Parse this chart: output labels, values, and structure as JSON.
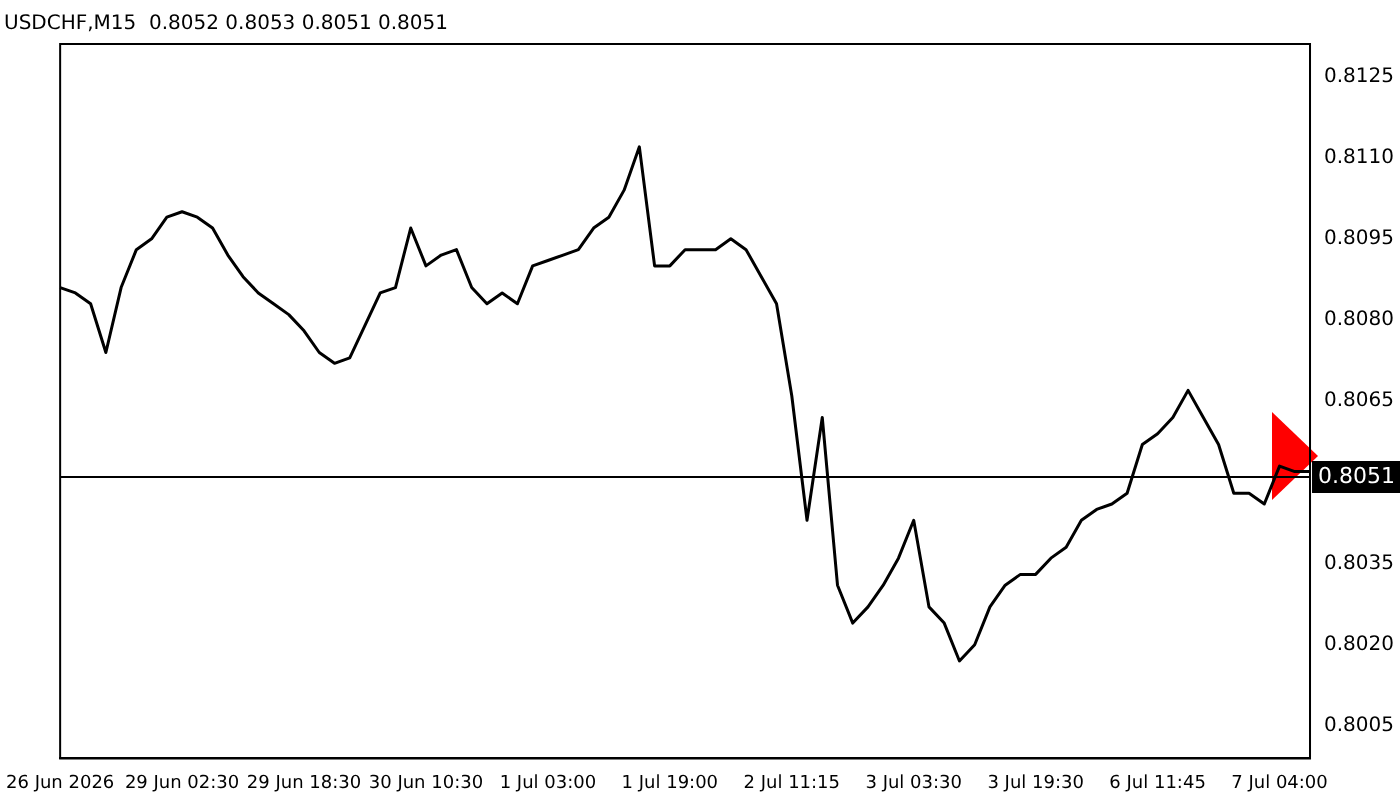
{
  "chart_data": {
    "type": "line",
    "title": "USDCHF,M15  0.8052 0.8053 0.8051 0.8051",
    "categories": [
      "26 Jun 2026",
      null,
      null,
      null,
      null,
      null,
      null,
      null,
      "29 Jun 02:30",
      null,
      null,
      null,
      null,
      null,
      null,
      null,
      "29 Jun 18:30",
      null,
      null,
      null,
      null,
      null,
      null,
      null,
      "30 Jun 10:30",
      null,
      null,
      null,
      null,
      null,
      null,
      null,
      "1 Jul 03:00",
      null,
      null,
      null,
      null,
      null,
      null,
      null,
      "1 Jul 19:00",
      null,
      null,
      null,
      null,
      null,
      null,
      null,
      "2 Jul 11:15",
      null,
      null,
      null,
      null,
      null,
      null,
      null,
      "3 Jul 03:30",
      null,
      null,
      null,
      null,
      null,
      null,
      null,
      "3 Jul 19:30",
      null,
      null,
      null,
      null,
      null,
      null,
      null,
      "6 Jul 11:45",
      null,
      null,
      null,
      null,
      null,
      null,
      null,
      "7 Jul 04:00",
      null,
      null
    ],
    "series": [
      {
        "color": "#000000",
        "values": [
          0.8086,
          0.8085,
          0.8083,
          0.8074,
          0.8086,
          0.8093,
          0.8095,
          0.8099,
          0.81,
          0.8099,
          0.8097,
          0.8092,
          0.8088,
          0.8085,
          0.8083,
          0.8081,
          0.8078,
          0.8074,
          0.8072,
          0.8073,
          0.8079,
          0.8085,
          0.8086,
          0.8097,
          0.809,
          0.8092,
          0.8093,
          0.8086,
          0.8083,
          0.8085,
          0.8083,
          0.809,
          0.8091,
          0.8092,
          0.8093,
          0.8097,
          0.8099,
          0.8104,
          0.8112,
          0.809,
          0.809,
          0.8093,
          0.8093,
          0.8093,
          0.8095,
          0.8093,
          0.8088,
          0.8083,
          0.8066,
          0.8043,
          0.8062,
          0.8031,
          0.8024,
          0.8027,
          0.8031,
          0.8036,
          0.8043,
          0.8027,
          0.8024,
          0.8017,
          0.802,
          0.8027,
          0.8031,
          0.8033,
          0.8033,
          0.8036,
          0.8038,
          0.8043,
          0.8045,
          0.8046,
          0.8048,
          0.8057,
          0.8059,
          0.8062,
          0.8067,
          0.8062,
          0.8057,
          0.8048,
          0.8048,
          0.8046,
          0.8053,
          0.8052,
          0.8052
        ]
      }
    ],
    "ylim": [
      0.7999,
      0.8131
    ],
    "yticks": [
      0.8125,
      {
        "value": 0.811,
        "label": "0.8110"
      },
      0.8095,
      {
        "value": 0.808,
        "label": "0.8080"
      },
      0.8065,
      0.8035,
      {
        "value": 0.802,
        "label": "0.8020"
      },
      0.8005
    ],
    "ref_lines": [
      {
        "axis": "y",
        "value": 0.8051,
        "label": "0.8051",
        "color": "#000000"
      }
    ],
    "grid": false,
    "legend": false,
    "marker": "none",
    "line_style": "solid"
  }
}
